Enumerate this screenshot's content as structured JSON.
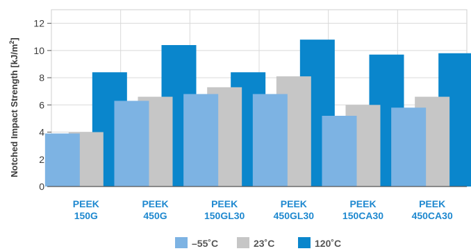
{
  "chart_data": {
    "type": "bar",
    "ylabel": "Notched Impact Strength [kJ/m²]",
    "ylabel_base": "Notched Impact Strength [kJ/m",
    "ylabel_sup": "2",
    "ylabel_end": "]",
    "ylim": [
      0,
      13
    ],
    "yticks": [
      0,
      2,
      4,
      6,
      8,
      10,
      12
    ],
    "grid": true,
    "legend_position": "bottom",
    "categories": [
      [
        "PEEK",
        "150G"
      ],
      [
        "PEEK",
        "450G"
      ],
      [
        "PEEK",
        "150GL30"
      ],
      [
        "PEEK",
        "450GL30"
      ],
      [
        "PEEK",
        "150CA30"
      ],
      [
        "PEEK",
        "450CA30"
      ]
    ],
    "series": [
      {
        "name": "–55˚C",
        "color": "#7db3e3",
        "values": [
          3.9,
          6.3,
          6.8,
          6.8,
          5.2,
          5.8
        ]
      },
      {
        "name": "23˚C",
        "color": "#c6c6c6",
        "values": [
          4.0,
          6.6,
          7.3,
          8.1,
          6.0,
          6.6
        ]
      },
      {
        "name": "120˚C",
        "color": "#0a86cc",
        "values": [
          8.4,
          10.4,
          8.4,
          10.8,
          9.7,
          9.8
        ]
      }
    ]
  }
}
